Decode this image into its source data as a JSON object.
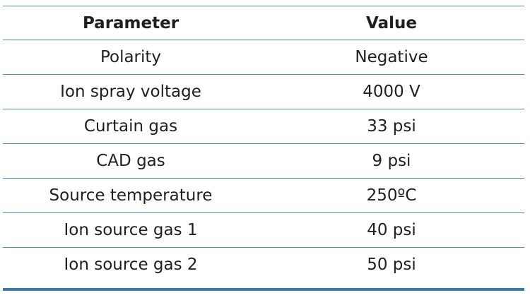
{
  "table": {
    "headers": [
      "Parameter",
      "Value"
    ],
    "rows": [
      [
        "Polarity",
        "Negative"
      ],
      [
        "Ion spray voltage",
        "4000 V"
      ],
      [
        "Curtain gas",
        "33 psi"
      ],
      [
        "CAD gas",
        "9 psi"
      ],
      [
        "Source temperature",
        "250ºC"
      ],
      [
        "Ion source gas 1",
        "40 psi"
      ],
      [
        "Ion source gas 2",
        "50 psi"
      ]
    ]
  },
  "colors": {
    "rule": "#4a8dbd",
    "bottom_rule": "#3d7aa6",
    "text": "#1f1f1f"
  }
}
